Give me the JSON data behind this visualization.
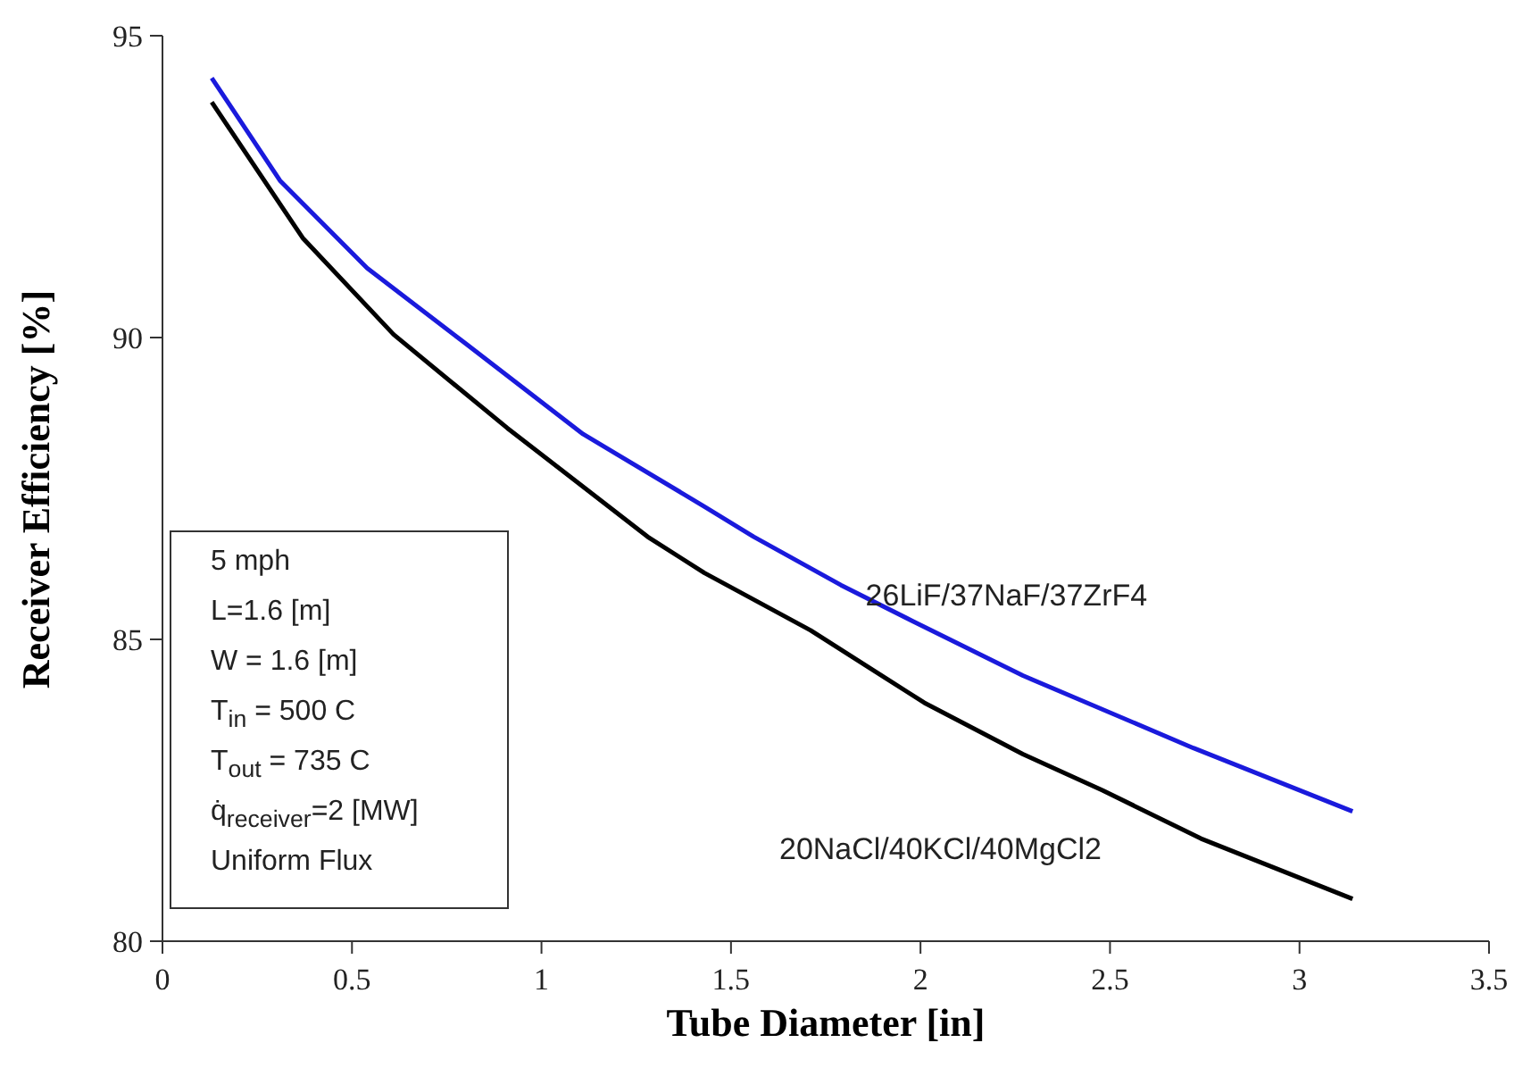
{
  "chart_data": {
    "type": "line",
    "xlabel": "Tube Diameter [in]",
    "ylabel": "Receiver Efficiency [%]",
    "xlim": [
      0,
      3.5
    ],
    "xticks": [
      0,
      0.5,
      1,
      1.5,
      2,
      2.5,
      3,
      3.5
    ],
    "ylim": [
      80,
      95
    ],
    "yticks": [
      80,
      85,
      90,
      95
    ],
    "marker": "none",
    "line_style": "solid",
    "series": [
      {
        "name": "26LiF/37NaF/37ZrF4",
        "color": "#1a1adc",
        "x": [
          0.13,
          0.31,
          0.54,
          0.8,
          1.11,
          1.43,
          1.56,
          1.79,
          1.98,
          2.27,
          2.72,
          3.14
        ],
        "values": [
          94.3,
          92.6,
          91.15,
          89.9,
          88.4,
          87.2,
          86.7,
          85.9,
          85.3,
          84.4,
          83.2,
          82.15
        ]
      },
      {
        "name": "20NaCl/40KCl/40MgCl2",
        "color": "#000000",
        "x": [
          0.13,
          0.37,
          0.61,
          0.91,
          1.28,
          1.43,
          1.71,
          2.01,
          2.27,
          2.48,
          2.74,
          3.14
        ],
        "values": [
          93.9,
          91.65,
          90.05,
          88.5,
          86.7,
          86.1,
          85.15,
          83.95,
          83.1,
          82.5,
          81.7,
          80.7
        ]
      }
    ],
    "annotations": [
      "5 mph",
      "L=1.6 [m]",
      "W = 1.6 [m]",
      "T$_{in}$ = 500 C",
      "T$_{out}$ = 735 C",
      "q̇$_{receiver}$=2 [MW]",
      "Uniform Flux"
    ]
  }
}
